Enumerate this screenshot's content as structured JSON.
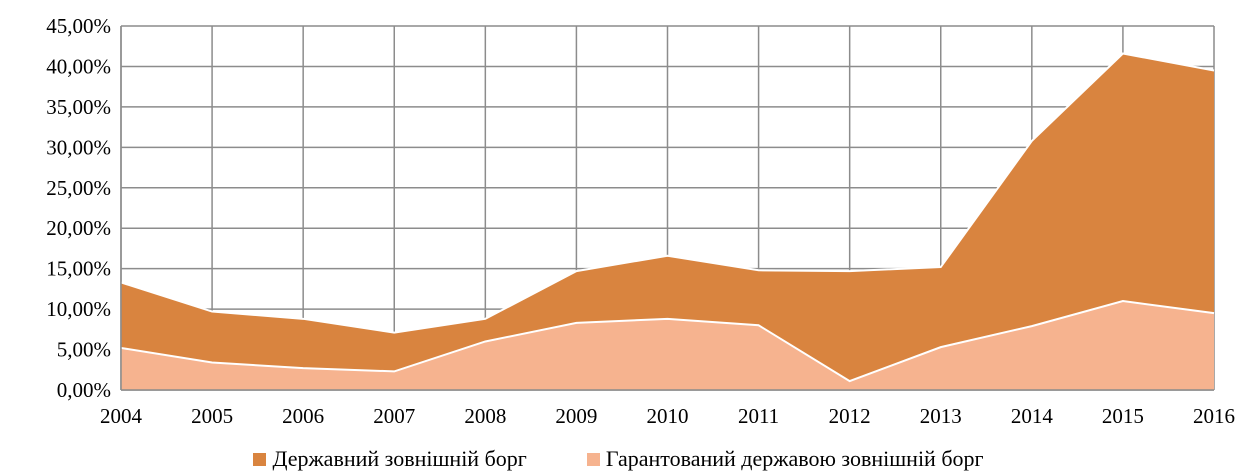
{
  "chart_data": {
    "type": "area",
    "stacked": true,
    "x": [
      "2004",
      "2005",
      "2006",
      "2007",
      "2008",
      "2009",
      "2010",
      "2011",
      "2012",
      "2013",
      "2014",
      "2015",
      "2016"
    ],
    "ylim": [
      0,
      45
    ],
    "ytick_step": 5,
    "ytick_labels": [
      "0,00%",
      "5,00%",
      "10,00%",
      "15,00%",
      "20,00%",
      "25,00%",
      "30,00%",
      "35,00%",
      "40,00%",
      "45,00%"
    ],
    "grid": true,
    "legend_position": "bottom",
    "series": [
      {
        "name": "Державний зовнішній борг",
        "color": "#d9843f",
        "values": [
          8.1,
          6.3,
          6.1,
          4.8,
          2.8,
          6.4,
          7.8,
          6.8,
          13.6,
          9.9,
          22.9,
          30.6,
          30.0
        ]
      },
      {
        "name": "Гарантований державою зовнішній борг",
        "color": "#f6b38f",
        "values": [
          5.2,
          3.4,
          2.7,
          2.3,
          6.0,
          8.3,
          8.8,
          8.0,
          1.1,
          5.3,
          7.9,
          11.0,
          9.5
        ]
      }
    ]
  }
}
